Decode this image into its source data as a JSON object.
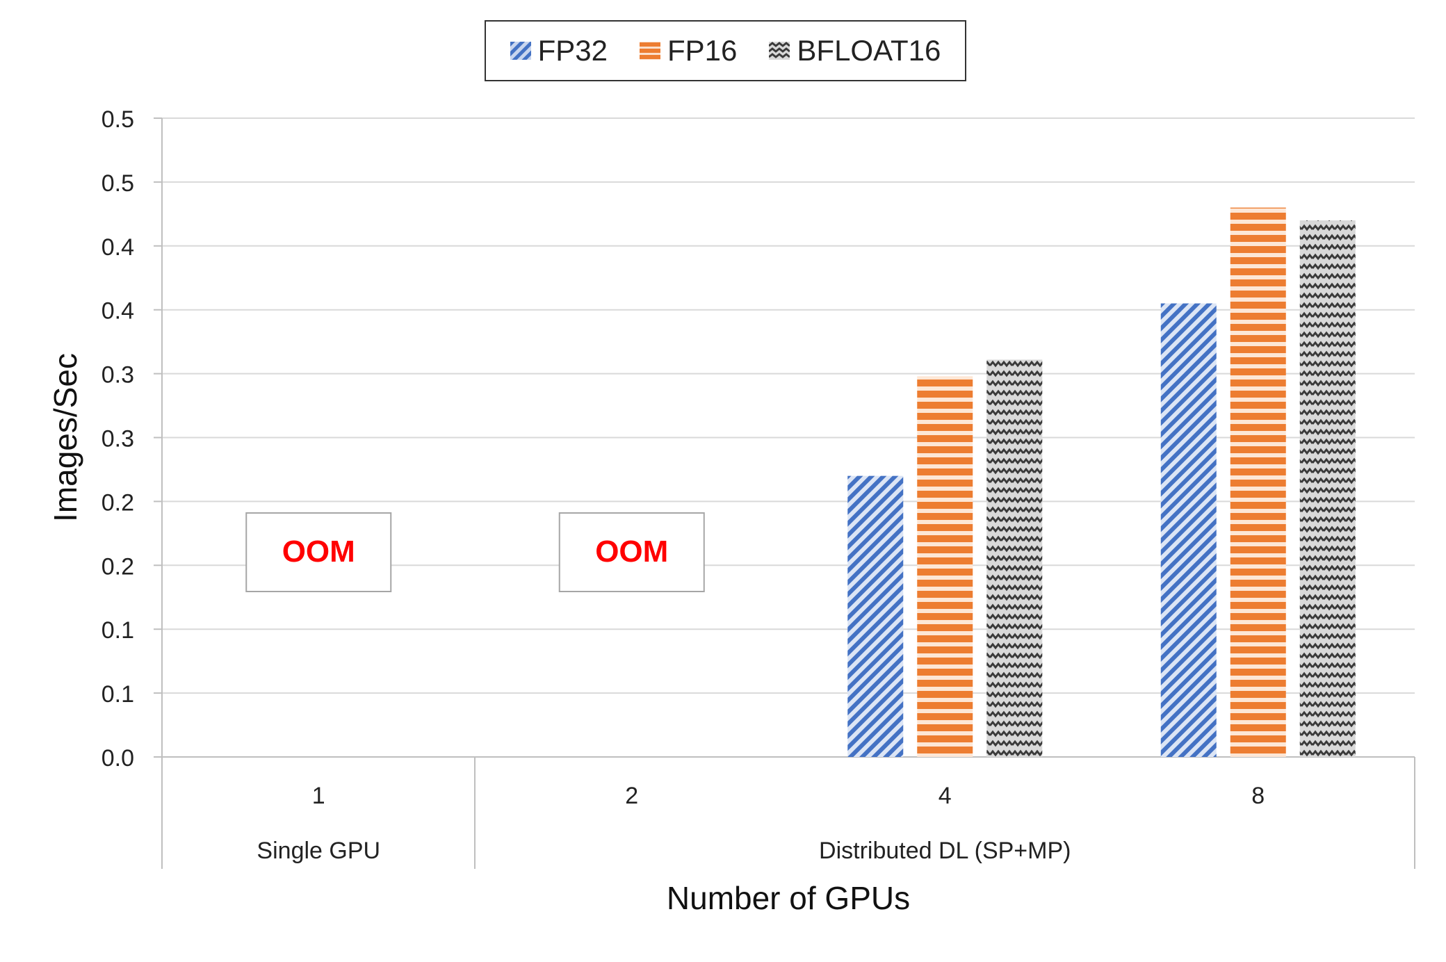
{
  "chart_data": {
    "type": "bar",
    "ylabel": "Images/Sec",
    "xlabel": "Number of GPUs",
    "ytick_labels": [
      "0.0",
      "0.1",
      "0.1",
      "0.2",
      "0.2",
      "0.3",
      "0.3",
      "0.4",
      "0.4",
      "0.5",
      "0.5"
    ],
    "ylim": [
      0,
      0.5
    ],
    "categories": [
      "1",
      "2",
      "4",
      "8"
    ],
    "groups": [
      {
        "label": "Single GPU",
        "categories": [
          "1"
        ]
      },
      {
        "label": "Distributed DL (SP+MP)",
        "categories": [
          "2",
          "4",
          "8"
        ]
      }
    ],
    "series": [
      {
        "name": "FP32",
        "color": "#4472C4",
        "values": [
          null,
          null,
          0.22,
          0.355
        ]
      },
      {
        "name": "FP16",
        "color": "#ED7D31",
        "values": [
          null,
          null,
          0.298,
          0.43
        ]
      },
      {
        "name": "BFLOAT16",
        "color": "#7F7F7F",
        "values": [
          null,
          null,
          0.311,
          0.42
        ]
      }
    ],
    "annotations": [
      {
        "category": "1",
        "text": "OOM",
        "color": "#FF0000"
      },
      {
        "category": "2",
        "text": "OOM",
        "color": "#FF0000"
      }
    ],
    "legend_position": "top-center",
    "grid": true
  }
}
